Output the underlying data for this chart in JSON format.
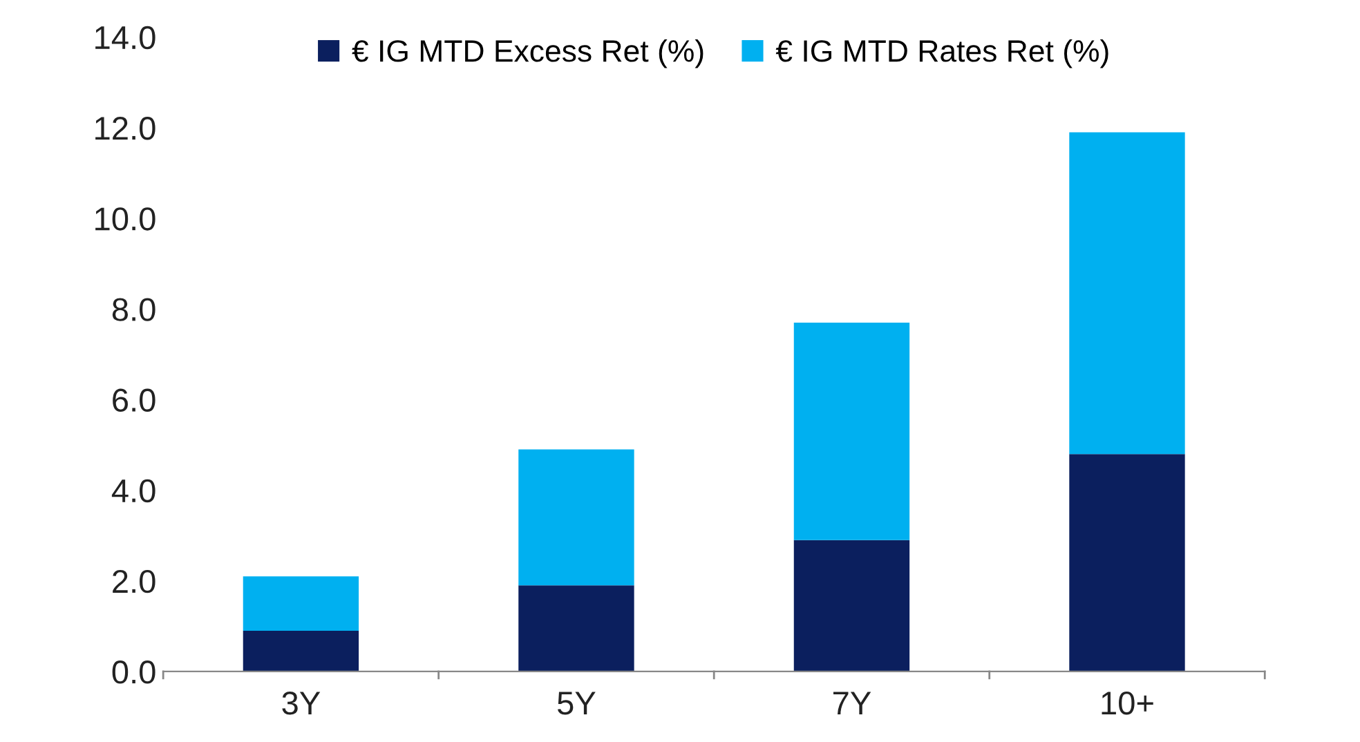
{
  "chart_data": {
    "type": "bar",
    "stacked": true,
    "categories": [
      "3Y",
      "5Y",
      "7Y",
      "10+"
    ],
    "series": [
      {
        "name": "€ IG MTD Excess Ret (%)",
        "color": "#0b1f5e",
        "values": [
          0.9,
          1.9,
          2.9,
          4.8
        ]
      },
      {
        "name": "€ IG MTD Rates Ret (%)",
        "color": "#00b0f0",
        "values": [
          1.2,
          3.0,
          4.8,
          7.1
        ]
      }
    ],
    "ylim": [
      0,
      14
    ],
    "yticks": [
      {
        "value": 0,
        "label": "0.0"
      },
      {
        "value": 2,
        "label": "2.0"
      },
      {
        "value": 4,
        "label": "4.0"
      },
      {
        "value": 6,
        "label": "6.0"
      },
      {
        "value": 8,
        "label": "8.0"
      },
      {
        "value": 10,
        "label": "10.0"
      },
      {
        "value": 12,
        "label": "12.0"
      },
      {
        "value": 14,
        "label": "14.0"
      }
    ],
    "grid": false,
    "legend": "top"
  }
}
